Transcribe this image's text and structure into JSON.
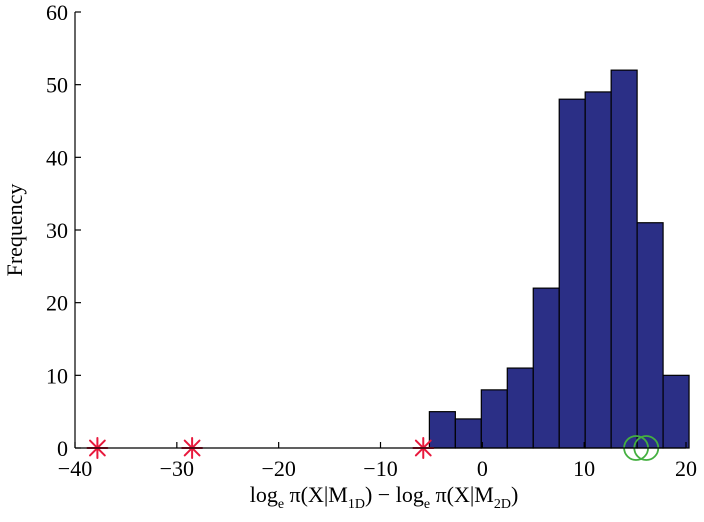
{
  "chart_data": {
    "type": "bar",
    "chart_kind": "histogram",
    "title": "",
    "ylabel": "Frequency",
    "xlabel": {
      "parts": [
        {
          "text": "log",
          "role": "normal"
        },
        {
          "text": "e",
          "role": "sub"
        },
        {
          "text": " π(X|M",
          "role": "normal"
        },
        {
          "text": "1D",
          "role": "sub"
        },
        {
          "text": ") − log",
          "role": "normal"
        },
        {
          "text": "e",
          "role": "sub"
        },
        {
          "text": " π(X|M",
          "role": "normal"
        },
        {
          "text": "2D",
          "role": "sub"
        },
        {
          "text": ")",
          "role": "normal"
        }
      ]
    },
    "xlim": [
      -40,
      20
    ],
    "ylim": [
      0,
      60
    ],
    "xticks": [
      "−40",
      "−30",
      "−20",
      "−10",
      "0",
      "10",
      "20"
    ],
    "xtick_values": [
      -40,
      -30,
      -20,
      -10,
      0,
      10,
      20
    ],
    "yticks": [
      "0",
      "10",
      "20",
      "30",
      "40",
      "50",
      "60"
    ],
    "ytick_values": [
      0,
      10,
      20,
      30,
      40,
      50,
      60
    ],
    "bin_edges": [
      -5.2,
      -2.65,
      -0.1,
      2.45,
      5.0,
      7.55,
      10.1,
      12.65,
      15.2,
      17.75,
      20.3
    ],
    "counts": [
      5,
      4,
      8,
      11,
      22,
      48,
      49,
      52,
      31,
      10
    ],
    "bar_color": "#2b2f86",
    "markers": [
      {
        "name": "red-star",
        "shape": "asterisk",
        "color": "#e8183c",
        "x": [
          -37.8,
          -28.5,
          -5.8
        ],
        "y": 0
      },
      {
        "name": "green-circle",
        "shape": "circle",
        "color": "#44b040",
        "x": [
          15.1,
          16.1
        ],
        "y": 0
      }
    ],
    "grid": false,
    "legend": "none"
  }
}
